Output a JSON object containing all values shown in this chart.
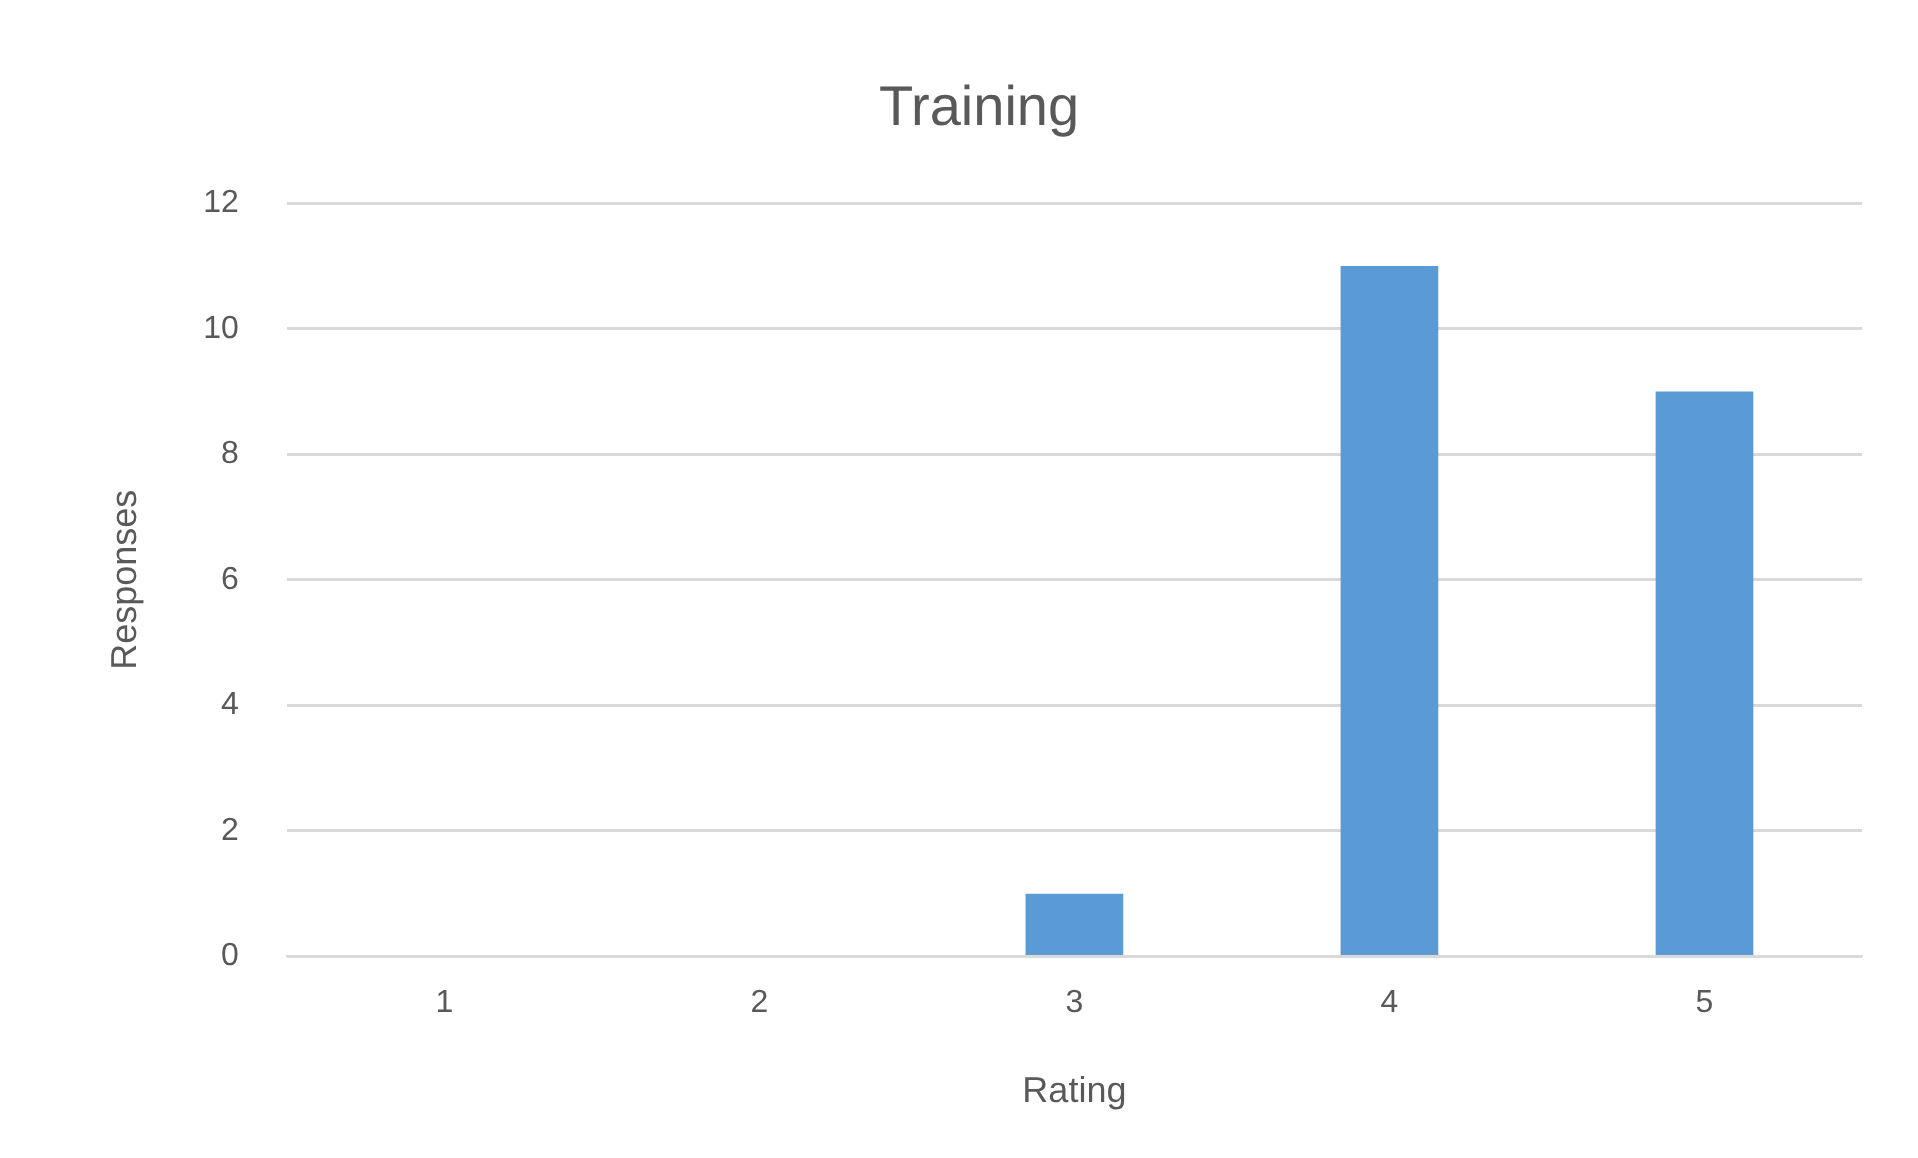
{
  "chart_data": {
    "type": "bar",
    "title": "Training",
    "xlabel": "Rating",
    "ylabel": "Responses",
    "categories": [
      "1",
      "2",
      "3",
      "4",
      "5"
    ],
    "series": [
      {
        "color": "#5b9bd5",
        "values": [
          0,
          0,
          1,
          11,
          9
        ]
      }
    ],
    "ylim": [
      0,
      12
    ],
    "yticks": [
      0,
      2,
      4,
      6,
      8,
      10,
      12
    ],
    "grid": "y",
    "legend": false
  }
}
